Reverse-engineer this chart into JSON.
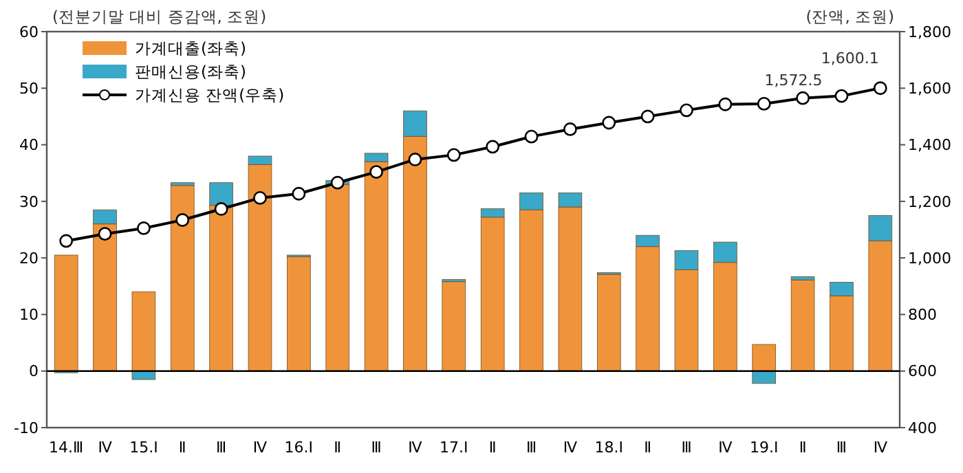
{
  "chart_data": {
    "type": "bar",
    "stacked": true,
    "ylabel": "(전분기말 대비 증감액, 조원)",
    "y2label": "(잔액, 조원)",
    "categories": [
      "14.Ⅲ",
      "Ⅳ",
      "15.Ⅰ",
      "Ⅱ",
      "Ⅲ",
      "Ⅳ",
      "16.Ⅰ",
      "Ⅱ",
      "Ⅲ",
      "Ⅳ",
      "17.Ⅰ",
      "Ⅱ",
      "Ⅲ",
      "Ⅳ",
      "18.Ⅰ",
      "Ⅱ",
      "Ⅲ",
      "Ⅳ",
      "19.Ⅰ",
      "Ⅱ",
      "Ⅲ",
      "Ⅳ"
    ],
    "series": [
      {
        "name": "가계대출(좌축)",
        "color": "#f0943c",
        "values": [
          20.5,
          26,
          14,
          32.8,
          29.3,
          36.5,
          20.2,
          33,
          37,
          41.5,
          15.8,
          27.2,
          28.5,
          29,
          17.1,
          22,
          17.9,
          19.2,
          4.7,
          16.1,
          13.3,
          23
        ]
      },
      {
        "name": "판매신용(좌축)",
        "color": "#3aa8c8",
        "values": [
          -0.3,
          2.5,
          -1.5,
          0.5,
          4,
          1.5,
          0.3,
          0.7,
          1.5,
          4.5,
          0.4,
          1.5,
          3,
          2.5,
          0.3,
          2,
          3.4,
          3.6,
          -2.2,
          0.6,
          2.4,
          4.5
        ]
      },
      {
        "name": "가계신용 잔액(우축)",
        "type": "line",
        "axis": "y2",
        "color": "#000000",
        "marker": "circle",
        "values": [
          1060,
          1085,
          1105,
          1134,
          1173,
          1212,
          1227,
          1266,
          1304,
          1348,
          1364,
          1393,
          1429,
          1455,
          1478,
          1500,
          1522,
          1543,
          1545,
          1565,
          1572.5,
          1600.1
        ],
        "value_labels": [
          null,
          null,
          null,
          null,
          null,
          null,
          null,
          null,
          null,
          null,
          null,
          null,
          null,
          null,
          null,
          null,
          null,
          null,
          null,
          null,
          "1,572.5",
          "1,600.1"
        ]
      }
    ],
    "ylim": [
      -10,
      60
    ],
    "yticks": [
      -10,
      0,
      10,
      20,
      30,
      40,
      50,
      60
    ],
    "y2lim": [
      400,
      1800
    ],
    "y2ticks": [
      {
        "value": 400,
        "label": "400"
      },
      {
        "value": 600,
        "label": "600"
      },
      {
        "value": 800,
        "label": "800"
      },
      {
        "value": 1000,
        "label": "1,000"
      },
      {
        "value": 1200,
        "label": "1,200"
      },
      {
        "value": 1400,
        "label": "1,400"
      },
      {
        "value": 1600,
        "label": "1,600"
      },
      {
        "value": 1800,
        "label": "1,800"
      }
    ],
    "legend": "top left"
  }
}
